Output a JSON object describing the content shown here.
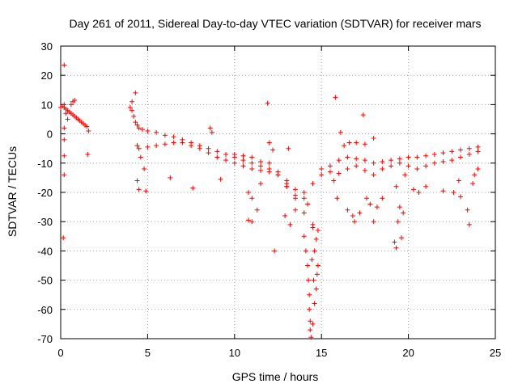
{
  "chart_data": {
    "type": "scatter",
    "title": "Day 261 of 2011, Sidereal Day-to-day VTEC variation (SDTVAR) for receiver mars",
    "xlabel": "GPS time / hours",
    "ylabel": "SDTVAR / TECUs",
    "xlim": [
      0,
      25
    ],
    "ylim": [
      -70,
      30
    ],
    "xticks": [
      0,
      5,
      10,
      15,
      20,
      25
    ],
    "yticks": [
      -70,
      -60,
      -50,
      -40,
      -30,
      -20,
      -10,
      0,
      10,
      20,
      30
    ],
    "grid": true,
    "marker": "+",
    "color": "#ff0000",
    "series": [
      {
        "name": "SDTVAR",
        "points": [
          [
            0.0,
            9.0
          ],
          [
            0.1,
            9.5
          ],
          [
            0.2,
            10.0
          ],
          [
            0.3,
            8.5
          ],
          [
            0.4,
            8.0
          ],
          [
            0.5,
            7.5
          ],
          [
            0.6,
            7.0
          ],
          [
            0.7,
            6.5
          ],
          [
            0.8,
            6.0
          ],
          [
            0.9,
            5.5
          ],
          [
            1.0,
            5.0
          ],
          [
            1.1,
            4.5
          ],
          [
            1.2,
            4.0
          ],
          [
            1.3,
            3.5
          ],
          [
            1.4,
            3.0
          ],
          [
            1.5,
            2.5
          ],
          [
            1.6,
            1.0
          ],
          [
            0.2,
            9.0
          ],
          [
            0.3,
            7.0
          ],
          [
            0.4,
            5.0
          ],
          [
            0.2,
            2.0
          ],
          [
            0.2,
            -2.0
          ],
          [
            0.2,
            -7.5
          ],
          [
            0.2,
            -14.0
          ],
          [
            0.15,
            -35.5
          ],
          [
            0.2,
            23.5
          ],
          [
            0.8,
            11.5
          ],
          [
            1.55,
            -7.0
          ],
          [
            0.6,
            10.0
          ],
          [
            0.7,
            11.0
          ],
          [
            4.0,
            9.0
          ],
          [
            4.1,
            8.0
          ],
          [
            4.2,
            6.0
          ],
          [
            4.3,
            4.0
          ],
          [
            4.4,
            3.0
          ],
          [
            4.5,
            2.0
          ],
          [
            4.7,
            1.5
          ],
          [
            5.0,
            1.0
          ],
          [
            5.5,
            0.5
          ],
          [
            6.0,
            -0.5
          ],
          [
            6.5,
            -1.0
          ],
          [
            7.0,
            -2.0
          ],
          [
            7.5,
            -3.0
          ],
          [
            8.0,
            -4.0
          ],
          [
            8.5,
            -5.0
          ],
          [
            9.0,
            -6.0
          ],
          [
            9.5,
            -7.0
          ],
          [
            10.0,
            -8.0
          ],
          [
            10.5,
            -9.0
          ],
          [
            11.0,
            -10.0
          ],
          [
            11.5,
            -11.0
          ],
          [
            12.0,
            -12.0
          ],
          [
            12.5,
            -14.0
          ],
          [
            13.0,
            -17.0
          ],
          [
            13.5,
            -22.0
          ],
          [
            14.0,
            -27.0
          ],
          [
            14.5,
            -31.0
          ],
          [
            14.8,
            -33.0
          ],
          [
            4.3,
            14.0
          ],
          [
            4.1,
            11.0
          ],
          [
            4.4,
            -4.0
          ],
          [
            4.6,
            -8.0
          ],
          [
            4.8,
            -12.0
          ],
          [
            4.4,
            -16.0
          ],
          [
            4.5,
            -19.0
          ],
          [
            4.9,
            -19.5
          ],
          [
            6.3,
            -15.0
          ],
          [
            7.6,
            -18.5
          ],
          [
            8.6,
            2.0
          ],
          [
            8.7,
            0.5
          ],
          [
            9.2,
            -15.5
          ],
          [
            4.5,
            -5.0
          ],
          [
            5.0,
            -4.5
          ],
          [
            5.5,
            -4.0
          ],
          [
            6.0,
            -3.5
          ],
          [
            6.5,
            -3.0
          ],
          [
            7.0,
            -3.0
          ],
          [
            7.5,
            -4.0
          ],
          [
            8.0,
            -5.0
          ],
          [
            8.5,
            -6.5
          ],
          [
            9.0,
            -8.0
          ],
          [
            9.5,
            -9.0
          ],
          [
            10.0,
            -10.0
          ],
          [
            10.5,
            -11.0
          ],
          [
            11.0,
            -12.0
          ],
          [
            11.5,
            -12.5
          ],
          [
            12.0,
            -13.0
          ],
          [
            12.5,
            -14.0
          ],
          [
            13.0,
            -16.0
          ],
          [
            13.5,
            -19.0
          ],
          [
            14.0,
            -22.0
          ],
          [
            14.2,
            -24.0
          ],
          [
            10.0,
            -7.0
          ],
          [
            10.5,
            -7.5
          ],
          [
            11.0,
            -8.0
          ],
          [
            11.5,
            -9.5
          ],
          [
            12.0,
            -10.0
          ],
          [
            12.5,
            -13.0
          ],
          [
            13.0,
            -18.0
          ],
          [
            13.5,
            -21.0
          ],
          [
            14.0,
            -20.0
          ],
          [
            14.5,
            -17.0
          ],
          [
            15.0,
            -14.0
          ],
          [
            15.5,
            -11.0
          ],
          [
            16.0,
            -9.0
          ],
          [
            16.5,
            -8.0
          ],
          [
            17.0,
            -8.5
          ],
          [
            17.5,
            -9.0
          ],
          [
            18.0,
            -10.0
          ],
          [
            18.5,
            -9.5
          ],
          [
            19.0,
            -9.0
          ],
          [
            19.5,
            -8.5
          ],
          [
            20.0,
            -8.0
          ],
          [
            20.5,
            -8.0
          ],
          [
            21.0,
            -7.5
          ],
          [
            21.5,
            -7.0
          ],
          [
            22.0,
            -6.5
          ],
          [
            22.5,
            -6.0
          ],
          [
            23.0,
            -5.5
          ],
          [
            23.5,
            -5.0
          ],
          [
            24.0,
            -4.5
          ],
          [
            15.0,
            -12.0
          ],
          [
            15.5,
            -13.0
          ],
          [
            16.0,
            -13.5
          ],
          [
            16.5,
            -12.0
          ],
          [
            17.0,
            -11.0
          ],
          [
            17.5,
            -12.5
          ],
          [
            18.0,
            -14.0
          ],
          [
            18.5,
            -12.0
          ],
          [
            19.0,
            -11.0
          ],
          [
            19.5,
            -10.0
          ],
          [
            20.0,
            -11.0
          ],
          [
            20.5,
            -12.0
          ],
          [
            21.0,
            -11.0
          ],
          [
            21.5,
            -10.0
          ],
          [
            22.0,
            -9.5
          ],
          [
            22.5,
            -9.0
          ],
          [
            23.0,
            -8.0
          ],
          [
            23.5,
            -7.0
          ],
          [
            24.0,
            -6.0
          ],
          [
            11.9,
            10.5
          ],
          [
            12.3,
            -40.0
          ],
          [
            11.0,
            -30.0
          ],
          [
            10.8,
            -29.5
          ],
          [
            11.3,
            -26.0
          ],
          [
            11.0,
            -22.0
          ],
          [
            10.8,
            -20.0
          ],
          [
            11.5,
            -17.0
          ],
          [
            12.0,
            -3.0
          ],
          [
            12.2,
            -5.5
          ],
          [
            13.1,
            -5.0
          ],
          [
            13.0,
            -18.0
          ],
          [
            12.9,
            -28.0
          ],
          [
            13.2,
            -31.0
          ],
          [
            13.5,
            -26.0
          ],
          [
            14.0,
            -35.0
          ],
          [
            14.1,
            -40.0
          ],
          [
            14.2,
            -45.0
          ],
          [
            14.25,
            -50.0
          ],
          [
            14.3,
            -55.0
          ],
          [
            14.3,
            -60.0
          ],
          [
            14.35,
            -64.0
          ],
          [
            14.35,
            -67.0
          ],
          [
            14.4,
            -69.5
          ],
          [
            14.5,
            -65.0
          ],
          [
            14.6,
            -58.0
          ],
          [
            14.7,
            -53.0
          ],
          [
            14.75,
            -48.0
          ],
          [
            14.8,
            -45.0
          ],
          [
            14.7,
            -36.0
          ],
          [
            14.5,
            -32.0
          ],
          [
            14.6,
            -40.0
          ],
          [
            14.45,
            -43.0
          ],
          [
            14.55,
            -50.0
          ],
          [
            15.8,
            12.5
          ],
          [
            17.4,
            6.5
          ],
          [
            16.1,
            0.5
          ],
          [
            16.3,
            -4.0
          ],
          [
            16.6,
            -3.0
          ],
          [
            17.0,
            -3.0
          ],
          [
            17.5,
            -3.5
          ],
          [
            18.0,
            -1.5
          ],
          [
            15.7,
            -16.0
          ],
          [
            15.9,
            -22.0
          ],
          [
            16.5,
            -26.0
          ],
          [
            16.8,
            -28.0
          ],
          [
            16.9,
            -30.0
          ],
          [
            17.2,
            -27.0
          ],
          [
            17.6,
            -22.0
          ],
          [
            17.8,
            -24.0
          ],
          [
            18.0,
            -30.0
          ],
          [
            18.2,
            -25.0
          ],
          [
            18.5,
            -22.0
          ],
          [
            19.2,
            -37.0
          ],
          [
            19.3,
            -39.0
          ],
          [
            19.4,
            -30.0
          ],
          [
            19.6,
            -35.5
          ],
          [
            19.5,
            -25.0
          ],
          [
            19.7,
            -27.0
          ],
          [
            19.3,
            -18.0
          ],
          [
            19.8,
            -14.0
          ],
          [
            20.3,
            -19.0
          ],
          [
            20.6,
            -20.0
          ],
          [
            21.0,
            -18.0
          ],
          [
            22.0,
            -19.5
          ],
          [
            22.6,
            -20.0
          ],
          [
            22.9,
            -16.0
          ],
          [
            23.0,
            -21.5
          ],
          [
            23.4,
            -26.0
          ],
          [
            23.5,
            -31.0
          ],
          [
            23.7,
            -17.0
          ],
          [
            24.0,
            -12.0
          ],
          [
            23.8,
            -14.0
          ]
        ]
      }
    ]
  }
}
